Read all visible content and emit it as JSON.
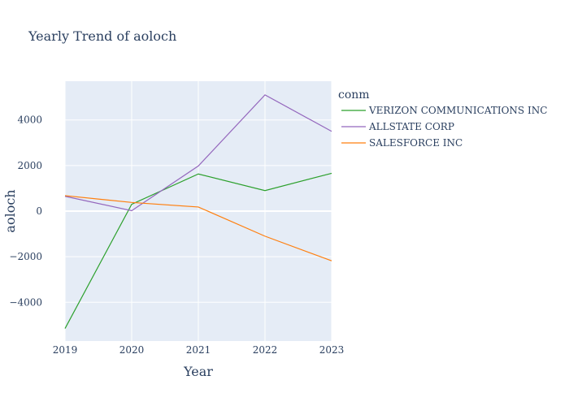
{
  "chart_data": {
    "type": "line",
    "title": "Yearly Trend of aoloch",
    "xlabel": "Year",
    "ylabel": "aoloch",
    "x": [
      2019,
      2020,
      2021,
      2022,
      2023
    ],
    "xlim": [
      2019,
      2023
    ],
    "ylim": [
      -5700,
      5700
    ],
    "yticks": [
      -4000,
      -2000,
      0,
      2000,
      4000
    ],
    "ytick_labels": [
      "−4000",
      "−2000",
      "0",
      "2000",
      "4000"
    ],
    "grid": true,
    "legend_title": "conm",
    "legend_position": "right",
    "series": [
      {
        "name": "VERIZON COMMUNICATIONS INC",
        "color": "#2ca02c",
        "values": [
          -5150,
          300,
          1630,
          900,
          1660
        ]
      },
      {
        "name": "ALLSTATE CORP",
        "color": "#9467bd",
        "values": [
          650,
          20,
          1980,
          5100,
          3500
        ]
      },
      {
        "name": "SALESFORCE INC",
        "color": "#ff7f0e",
        "values": [
          680,
          380,
          180,
          -1100,
          -2180
        ]
      }
    ]
  },
  "colors": {
    "plot_bg": "#e5ecf6",
    "grid": "#ffffff"
  }
}
